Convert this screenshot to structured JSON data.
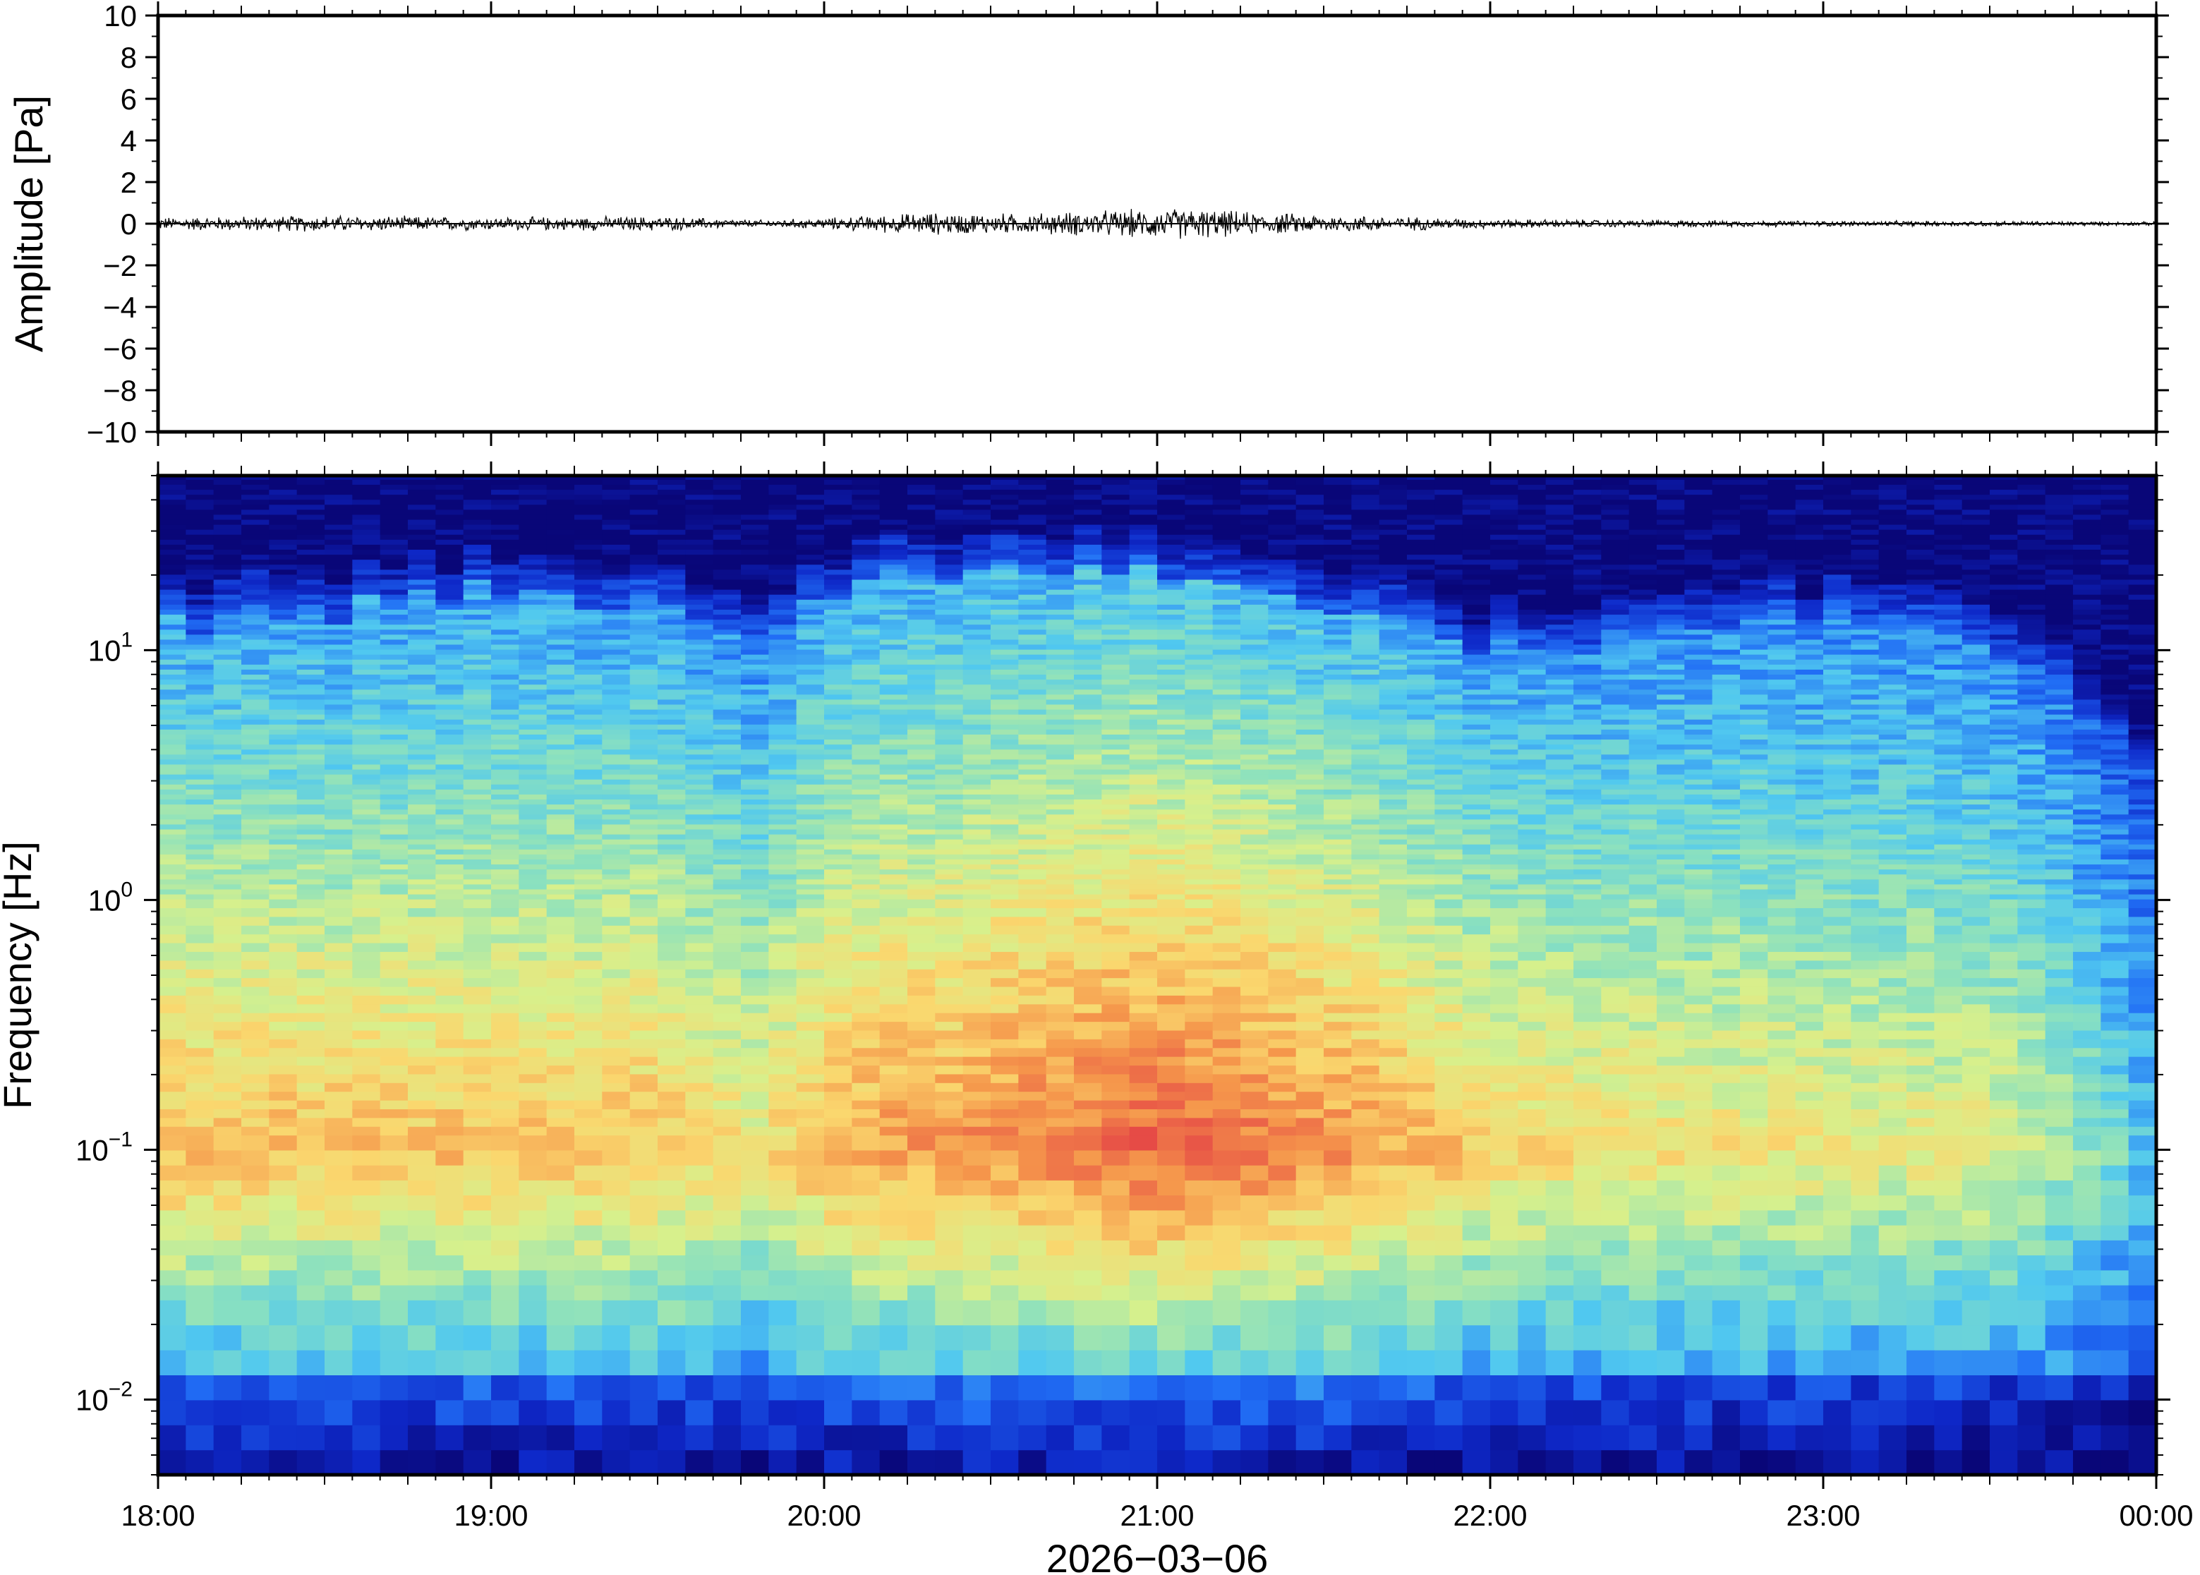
{
  "chart_data": [
    {
      "type": "line",
      "ylabel": "Amplitude [Pa]",
      "ylim": [
        -10,
        10
      ],
      "yticks": [
        10,
        8,
        6,
        4,
        2,
        0,
        -2,
        -4,
        -6,
        -8,
        -10
      ],
      "ytick_labels": [
        "10",
        "8",
        "6",
        "4",
        "2",
        "0",
        "−2",
        "−4",
        "−6",
        "−8",
        "−10"
      ],
      "series": [
        {
          "x_hours": [
            18.0,
            18.5,
            19.0,
            19.5,
            19.8,
            20.0,
            20.3,
            20.6,
            20.9,
            21.1,
            21.3,
            21.6,
            22.0,
            22.5,
            23.0,
            23.5,
            24.0
          ],
          "envelope": [
            0.35,
            0.45,
            0.35,
            0.4,
            0.2,
            0.3,
            0.6,
            0.55,
            0.75,
            0.85,
            0.6,
            0.45,
            0.25,
            0.2,
            0.15,
            0.15,
            0.1
          ]
        }
      ],
      "grid": false
    },
    {
      "type": "heatmap",
      "xlabel": "2026−03−06",
      "ylabel": "Frequency [Hz]",
      "x_tick_labels": [
        "18:00",
        "19:00",
        "20:00",
        "21:00",
        "22:00",
        "23:00",
        "00:00"
      ],
      "x_ticks_hours": [
        18,
        19,
        20,
        21,
        22,
        23,
        24
      ],
      "xlim_hours": [
        18,
        24
      ],
      "yscale": "log",
      "ylim": [
        0.005,
        50
      ],
      "y_tick_labels": [
        {
          "base": "10",
          "exp": "1",
          "value": 10
        },
        {
          "base": "10",
          "exp": "0",
          "value": 1
        },
        {
          "base": "10",
          "exp": "−1",
          "value": 0.1
        },
        {
          "base": "10",
          "exp": "−2",
          "value": 0.01
        }
      ],
      "colormap": "jet",
      "time_hours": [
        18.0,
        18.5,
        19.0,
        19.5,
        19.8,
        20.0,
        20.5,
        21.0,
        21.5,
        22.0,
        22.5,
        23.0,
        23.5,
        23.7,
        24.0
      ],
      "upper_cutoff_hz": [
        13,
        14,
        17,
        17,
        9,
        17,
        22,
        20,
        17,
        10,
        12,
        13,
        11,
        7,
        3
      ],
      "peak_frequency_hz": 0.1,
      "peak_level": [
        0.72,
        0.7,
        0.7,
        0.7,
        0.6,
        0.74,
        0.8,
        0.88,
        0.8,
        0.66,
        0.62,
        0.6,
        0.58,
        0.5,
        0.3
      ]
    }
  ]
}
